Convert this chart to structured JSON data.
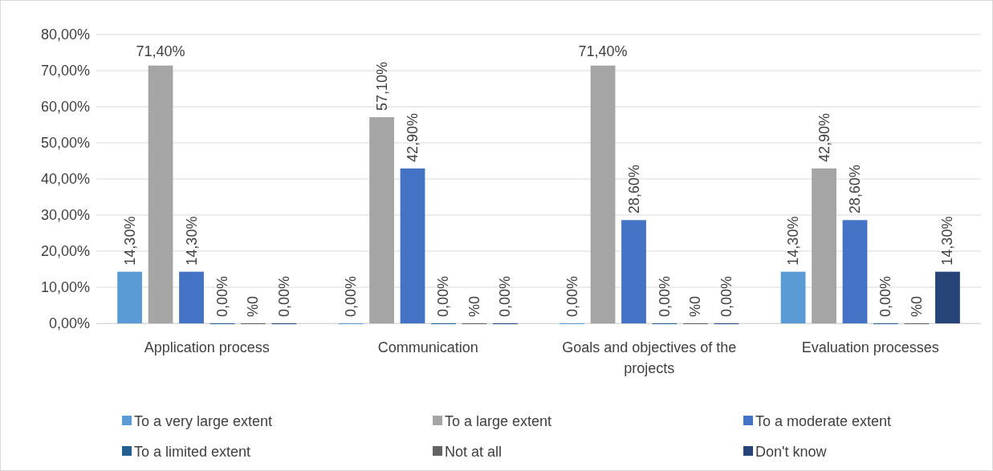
{
  "chart_data": {
    "type": "bar",
    "categories": [
      "Application process",
      "Communication",
      "Goals and objectives of the projects",
      "Evaluation processes"
    ],
    "series": [
      {
        "name": "To a very large extent",
        "color": "#5b9bd5",
        "values": [
          14.3,
          0,
          0,
          14.3
        ],
        "value_labels": [
          "14,30%",
          "0,00%",
          "0,00%",
          "14,30%"
        ]
      },
      {
        "name": "To a large extent",
        "color": "#a5a5a5",
        "values": [
          71.4,
          57.1,
          71.4,
          42.9
        ],
        "value_labels": [
          "71,40%",
          "57,10%",
          "71,40%",
          "42,90%"
        ]
      },
      {
        "name": "To a moderate extent",
        "color": "#4472c4",
        "values": [
          14.3,
          42.9,
          28.6,
          28.6
        ],
        "value_labels": [
          "14,30%",
          "42,90%",
          "28,60%",
          "28,60%"
        ]
      },
      {
        "name": "To a limited extent",
        "color": "#255e91",
        "values": [
          0,
          0,
          0,
          0
        ],
        "value_labels": [
          "0,00%",
          "0,00%",
          "0,00%",
          "0,00%"
        ]
      },
      {
        "name": "Not at all",
        "color": "#636363",
        "values": [
          0,
          0,
          0,
          0
        ],
        "value_labels": [
          "%0",
          "%0",
          "%0",
          "%0"
        ]
      },
      {
        "name": "Don't know",
        "color": "#264478",
        "values": [
          0,
          0,
          0,
          14.3
        ],
        "value_labels": [
          "0,00%",
          "0,00%",
          "0,00%",
          "14,30%"
        ]
      }
    ],
    "ylim": [
      0,
      80
    ],
    "yticks": [
      {
        "value": 0,
        "label": "0,00%"
      },
      {
        "value": 10,
        "label": "10,00%"
      },
      {
        "value": 20,
        "label": "20,00%"
      },
      {
        "value": 30,
        "label": "30,00%"
      },
      {
        "value": 40,
        "label": "40,00%"
      },
      {
        "value": 50,
        "label": "50,00%"
      },
      {
        "value": 60,
        "label": "60,00%"
      },
      {
        "value": 70,
        "label": "70,00%"
      },
      {
        "value": 80,
        "label": "80,00%"
      }
    ],
    "grid": "y",
    "legend": "bottom"
  }
}
